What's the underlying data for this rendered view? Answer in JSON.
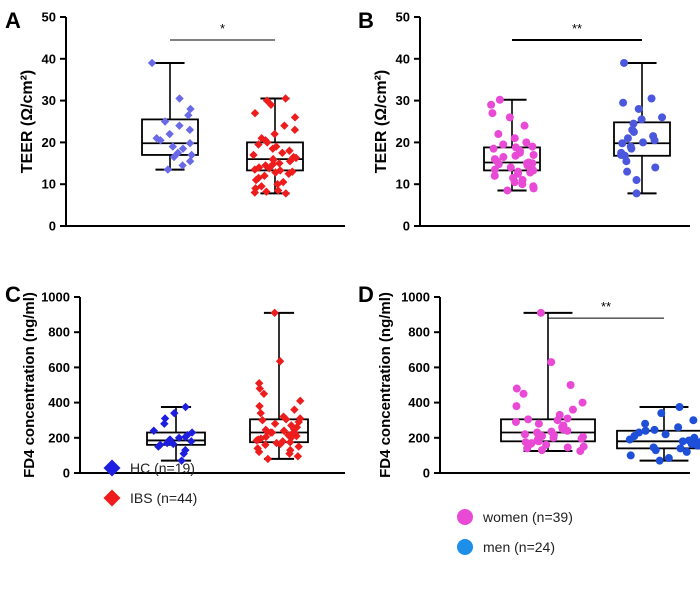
{
  "colors": {
    "hc": "#1e1ee0",
    "ibs": "#ee1c1c",
    "women": "#e84ad6",
    "men": "#1e4fd8",
    "hc_light": "#6a6ae8",
    "men_light": "#4b57dd",
    "axis": "#000000"
  },
  "legends": {
    "left": [
      {
        "label": "HC (n=19)",
        "color": "#1e1ee0"
      },
      {
        "label": "IBS (n=44)",
        "color": "#ee1c1c"
      }
    ],
    "right": [
      {
        "label": "women (n=39)",
        "color": "#e84ad6"
      },
      {
        "label": "men (n=24)",
        "color": "#1e8fe8"
      }
    ]
  },
  "chart_data": [
    {
      "panel": "A",
      "type": "box",
      "ylabel": "TEER (Ω/cm²)",
      "ylim": [
        0,
        50
      ],
      "yticks": [
        0,
        10,
        20,
        30,
        40,
        50
      ],
      "significance": {
        "from": 0,
        "to": 1,
        "label": "*",
        "y": 44.5
      },
      "series": [
        {
          "name": "HC",
          "marker": "diamond",
          "colorKey": "hc_light",
          "box": {
            "min": 13.5,
            "q1": 17,
            "median": 19.8,
            "q3": 25.5,
            "max": 39
          },
          "values": [
            39,
            30.5,
            28,
            26.5,
            25,
            24,
            23,
            22,
            21,
            20.5,
            19.8,
            19,
            18.5,
            17.5,
            17,
            16.5,
            15.5,
            14.5,
            13.5
          ]
        },
        {
          "name": "IBS",
          "marker": "diamond",
          "colorKey": "ibs",
          "box": {
            "min": 7.8,
            "q1": 13.3,
            "median": 16,
            "q3": 20,
            "max": 30.5
          },
          "values": [
            30.5,
            30,
            29,
            27,
            26,
            24,
            23,
            22,
            21,
            20.5,
            20,
            19.5,
            19,
            18.5,
            18,
            17.5,
            17,
            16.5,
            16.3,
            16,
            16,
            15.8,
            15.5,
            15,
            14.8,
            14.5,
            14,
            13.8,
            13.5,
            13.3,
            13,
            12.8,
            12.5,
            12,
            11.5,
            11,
            10.5,
            10,
            9.5,
            9,
            8.5,
            8.2,
            8,
            7.8
          ]
        }
      ]
    },
    {
      "panel": "B",
      "type": "box",
      "ylabel": "TEER (Ω/cm²)",
      "ylim": [
        0,
        50
      ],
      "yticks": [
        0,
        10,
        20,
        30,
        40,
        50
      ],
      "significance": {
        "from": 0,
        "to": 1,
        "label": "**",
        "y": 44.5,
        "bold": true
      },
      "series": [
        {
          "name": "women",
          "marker": "circle",
          "colorKey": "women",
          "box": {
            "min": 8.5,
            "q1": 13.3,
            "median": 15.2,
            "q3": 18.8,
            "max": 30.2
          },
          "values": [
            30.2,
            29,
            27,
            26,
            24,
            22,
            21,
            20,
            19.5,
            19,
            18.8,
            18.5,
            18,
            17.5,
            17,
            16.8,
            16.5,
            16,
            15.5,
            15.2,
            15,
            15,
            14.8,
            14.5,
            14,
            13.8,
            13.5,
            13.3,
            13,
            12.8,
            12.5,
            12,
            11.5,
            11,
            10.5,
            10,
            9.5,
            9,
            8.5
          ]
        },
        {
          "name": "men",
          "marker": "circle",
          "colorKey": "men_light",
          "box": {
            "min": 7.8,
            "q1": 16.8,
            "median": 19.8,
            "q3": 24.8,
            "max": 39
          },
          "values": [
            39,
            30.5,
            29.5,
            28,
            26,
            25.5,
            24.5,
            23,
            22.5,
            21.5,
            21,
            20.5,
            20,
            19.8,
            19,
            18.5,
            17.5,
            17,
            16.8,
            15.5,
            14,
            13,
            11,
            7.8
          ]
        }
      ]
    },
    {
      "panel": "C",
      "type": "box",
      "ylabel": "FD4 concentration  (ng/ml)",
      "ylim": [
        0,
        1000
      ],
      "yticks": [
        0,
        200,
        400,
        600,
        800,
        1000
      ],
      "series": [
        {
          "name": "HC",
          "marker": "diamond",
          "colorKey": "hc",
          "box": {
            "min": 70,
            "q1": 160,
            "median": 185,
            "q3": 230,
            "max": 375
          },
          "values": [
            375,
            340,
            310,
            280,
            240,
            230,
            215,
            205,
            200,
            190,
            185,
            180,
            170,
            165,
            160,
            150,
            130,
            110,
            70
          ]
        },
        {
          "name": "IBS",
          "marker": "diamond",
          "colorKey": "ibs",
          "box": {
            "min": 80,
            "q1": 175,
            "median": 230,
            "q3": 305,
            "max": 910
          },
          "values": [
            910,
            635,
            510,
            480,
            450,
            410,
            380,
            360,
            340,
            320,
            310,
            305,
            300,
            290,
            280,
            270,
            260,
            250,
            245,
            240,
            235,
            230,
            230,
            225,
            220,
            215,
            210,
            205,
            200,
            195,
            190,
            185,
            180,
            175,
            170,
            165,
            160,
            150,
            140,
            130,
            120,
            110,
            95,
            80
          ]
        }
      ]
    },
    {
      "panel": "D",
      "type": "box",
      "ylabel": "FD4 concentration  (ng/ml)",
      "ylim": [
        0,
        1000
      ],
      "yticks": [
        0,
        200,
        400,
        600,
        800,
        1000
      ],
      "significance": {
        "from": 0,
        "to": 1,
        "label": "**",
        "y": 880
      },
      "series": [
        {
          "name": "women",
          "marker": "circle",
          "colorKey": "women",
          "box": {
            "min": 125,
            "q1": 180,
            "median": 230,
            "q3": 305,
            "max": 910
          },
          "values": [
            910,
            630,
            500,
            480,
            450,
            400,
            380,
            360,
            330,
            310,
            305,
            300,
            290,
            280,
            270,
            260,
            250,
            240,
            235,
            230,
            225,
            220,
            215,
            210,
            205,
            200,
            195,
            190,
            185,
            180,
            175,
            170,
            165,
            160,
            150,
            145,
            140,
            130,
            125
          ]
        },
        {
          "name": "men",
          "marker": "circle",
          "colorKey": "men",
          "box": {
            "min": 70,
            "q1": 140,
            "median": 180,
            "q3": 240,
            "max": 375
          },
          "values": [
            375,
            340,
            300,
            280,
            260,
            245,
            240,
            230,
            220,
            210,
            200,
            190,
            185,
            180,
            175,
            165,
            155,
            145,
            140,
            130,
            120,
            100,
            85,
            70
          ]
        }
      ]
    }
  ]
}
